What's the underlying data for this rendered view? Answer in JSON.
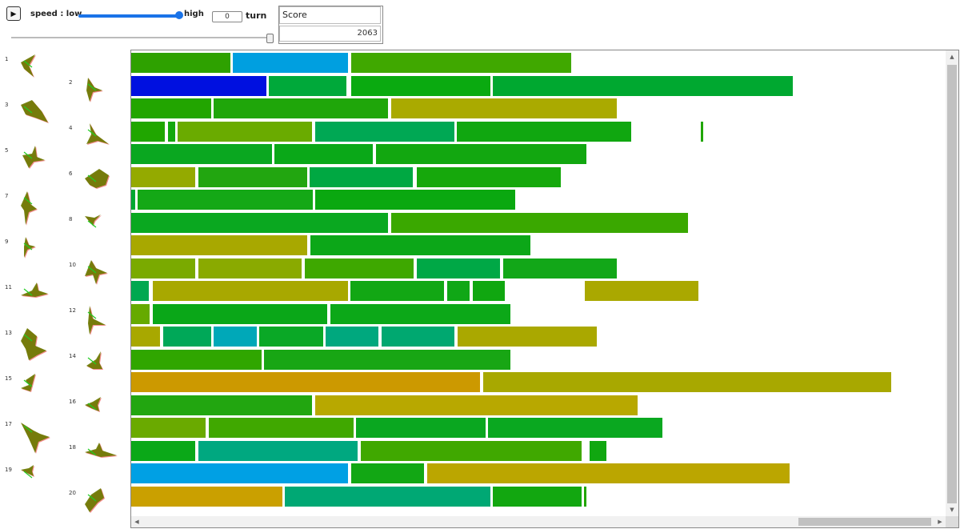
{
  "controls": {
    "play_glyph": "▶",
    "speed_label": "speed : low",
    "speed_high_label": "high",
    "speed_value": 1.0,
    "turn_value": "0",
    "turn_label": "turn",
    "turn_slider_value": 1.0
  },
  "score": {
    "title": "Score",
    "value": "2063"
  },
  "shape_numbers": [
    "1",
    "2",
    "3",
    "4",
    "5",
    "6",
    "7",
    "8",
    "9",
    "10",
    "11",
    "12",
    "13",
    "14",
    "15",
    "16",
    "17",
    "18",
    "19",
    "20"
  ],
  "chart_data": {
    "type": "bar",
    "rows": [
      [
        [
          "#2ea100",
          0,
          124
        ],
        [
          "#009fe0",
          127,
          144
        ],
        [
          "#40a800",
          275,
          275
        ]
      ],
      [
        [
          "#0010e0",
          0,
          169
        ],
        [
          "#00a93a",
          172,
          97
        ],
        [
          "#0aaa10",
          275,
          174
        ],
        [
          "#00a830",
          452,
          375
        ]
      ],
      [
        [
          "#22a500",
          0,
          100
        ],
        [
          "#1fa60a",
          103,
          218
        ],
        [
          "#aaaa00",
          325,
          282
        ]
      ],
      [
        [
          "#20a600",
          0,
          42
        ],
        [
          "#14a80e",
          46,
          9
        ],
        [
          "#6aab00",
          58,
          168
        ],
        [
          "#00a854",
          230,
          174
        ],
        [
          "#10a710",
          407,
          218
        ],
        [
          "#20a600",
          712,
          3
        ]
      ],
      [
        [
          "#0aa720",
          0,
          176
        ],
        [
          "#0aa818",
          179,
          123
        ],
        [
          "#12a710",
          306,
          263
        ]
      ],
      [
        [
          "#94aa00",
          0,
          80
        ],
        [
          "#22a610",
          84,
          136
        ],
        [
          "#00a842",
          223,
          129
        ],
        [
          "#16a80c",
          357,
          180
        ]
      ],
      [
        [
          "#00a830",
          0,
          5
        ],
        [
          "#14a816",
          8,
          219
        ],
        [
          "#0aa810",
          230,
          250
        ]
      ],
      [
        [
          "#0aa820",
          0,
          321
        ],
        [
          "#3aa800",
          325,
          371
        ]
      ],
      [
        [
          "#a8a800",
          0,
          220
        ],
        [
          "#0ca718",
          224,
          275
        ]
      ],
      [
        [
          "#7aaa00",
          0,
          80
        ],
        [
          "#8aaa00",
          84,
          129
        ],
        [
          "#3ea800",
          217,
          136
        ],
        [
          "#00a846",
          357,
          104
        ],
        [
          "#12a718",
          465,
          142
        ]
      ],
      [
        [
          "#00a850",
          0,
          22
        ],
        [
          "#a8a800",
          27,
          244
        ],
        [
          "#12a714",
          274,
          117
        ],
        [
          "#10a716",
          395,
          28
        ],
        [
          "#10a710",
          427,
          40
        ],
        [
          "#aaa800",
          567,
          142
        ]
      ],
      [
        [
          "#66aa00",
          0,
          23
        ],
        [
          "#0aa718",
          27,
          218
        ],
        [
          "#0ca818",
          249,
          225
        ]
      ],
      [
        [
          "#a8a800",
          0,
          36
        ],
        [
          "#00a858",
          40,
          60
        ],
        [
          "#00a8b8",
          103,
          54
        ],
        [
          "#0aa826",
          160,
          80
        ],
        [
          "#00a87e",
          243,
          66
        ],
        [
          "#00a870",
          313,
          91
        ],
        [
          "#aaa800",
          408,
          174
        ]
      ],
      [
        [
          "#30a600",
          0,
          163
        ],
        [
          "#18a614",
          166,
          308
        ]
      ],
      [
        [
          "#cc9900",
          0,
          436
        ],
        [
          "#a8a800",
          440,
          510
        ]
      ],
      [
        [
          "#22a610",
          0,
          226
        ],
        [
          "#b8a800",
          230,
          403
        ]
      ],
      [
        [
          "#6aaa00",
          0,
          93
        ],
        [
          "#40a800",
          97,
          181
        ],
        [
          "#0aa720",
          281,
          162
        ],
        [
          "#0aa820",
          446,
          218
        ]
      ],
      [
        [
          "#0aa818",
          0,
          80
        ],
        [
          "#00a880",
          84,
          199
        ],
        [
          "#40a800",
          287,
          276
        ],
        [
          "#10a710",
          573,
          21
        ]
      ],
      [
        [
          "#00a0e4",
          0,
          271
        ],
        [
          "#12a714",
          275,
          91
        ],
        [
          "#bba600",
          370,
          453
        ]
      ],
      [
        [
          "#caa000",
          0,
          189
        ],
        [
          "#00a874",
          192,
          257
        ],
        [
          "#12a710",
          452,
          111
        ],
        [
          "#22a600",
          566,
          3
        ]
      ]
    ]
  }
}
